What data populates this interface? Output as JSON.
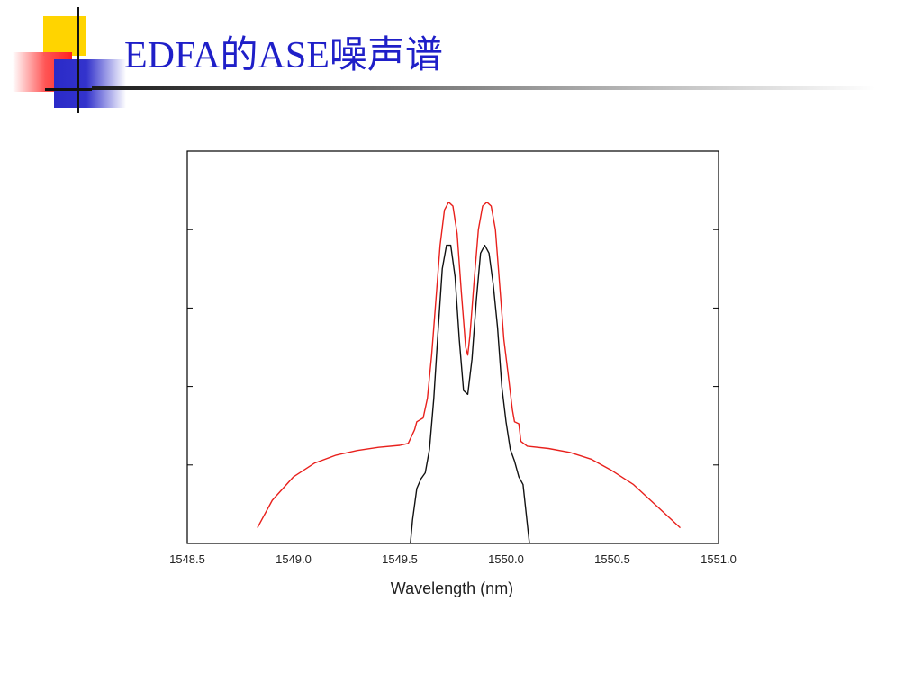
{
  "slide": {
    "title": "EDFA的ASE噪声谱"
  },
  "colors": {
    "title": "#1f1fc8",
    "red_curve": "#e8201c",
    "black_curve": "#111111"
  },
  "chart_data": {
    "type": "line",
    "title": "",
    "xlabel": "Wavelength (nm)",
    "ylabel": "",
    "xlim": [
      1548.5,
      1551.0
    ],
    "ylim": [
      0,
      100
    ],
    "x_ticks": [
      "1548.5",
      "1549.0",
      "1549.5",
      "1550.0",
      "1550.5",
      "1551.0"
    ],
    "y_tick_values": [
      20,
      40,
      60,
      80
    ],
    "grid": false,
    "legend": "none",
    "series": [
      {
        "color": "#e8201c",
        "x": [
          1548.83,
          1548.9,
          1549.0,
          1549.1,
          1549.2,
          1549.3,
          1549.4,
          1549.5,
          1549.54,
          1549.57,
          1549.58,
          1549.61,
          1549.63,
          1549.65,
          1549.67,
          1549.69,
          1549.71,
          1549.73,
          1549.75,
          1549.77,
          1549.79,
          1549.81,
          1549.82,
          1549.83,
          1549.85,
          1549.87,
          1549.89,
          1549.91,
          1549.93,
          1549.95,
          1549.97,
          1549.99,
          1550.01,
          1550.03,
          1550.04,
          1550.06,
          1550.07,
          1550.1,
          1550.2,
          1550.3,
          1550.4,
          1550.5,
          1550.6,
          1550.7,
          1550.82
        ],
        "y": [
          4,
          11,
          17,
          20.5,
          22.5,
          23.7,
          24.5,
          25,
          25.5,
          29,
          31,
          32,
          37,
          48,
          62,
          76,
          85,
          87,
          86,
          79,
          64,
          50,
          48,
          53,
          67,
          80,
          86,
          87,
          86,
          80,
          66,
          52,
          43,
          34,
          31,
          30.5,
          26,
          24.8,
          24.2,
          23.2,
          21.5,
          18.5,
          15,
          10,
          4
        ]
      },
      {
        "color": "#111111",
        "x": [
          1549.55,
          1549.56,
          1549.58,
          1549.6,
          1549.62,
          1549.64,
          1549.66,
          1549.68,
          1549.7,
          1549.72,
          1549.74,
          1549.76,
          1549.78,
          1549.8,
          1549.82,
          1549.84,
          1549.86,
          1549.88,
          1549.9,
          1549.92,
          1549.94,
          1549.96,
          1549.98,
          1550.0,
          1550.02,
          1550.04,
          1550.06,
          1550.08,
          1550.1,
          1550.11
        ],
        "y": [
          0,
          6,
          14,
          16.5,
          18,
          24,
          37,
          54,
          70,
          76,
          76,
          68,
          52,
          39,
          38,
          47,
          62,
          74,
          76,
          74,
          66,
          55,
          40,
          31,
          24,
          21,
          17,
          15,
          5,
          0
        ]
      }
    ]
  }
}
